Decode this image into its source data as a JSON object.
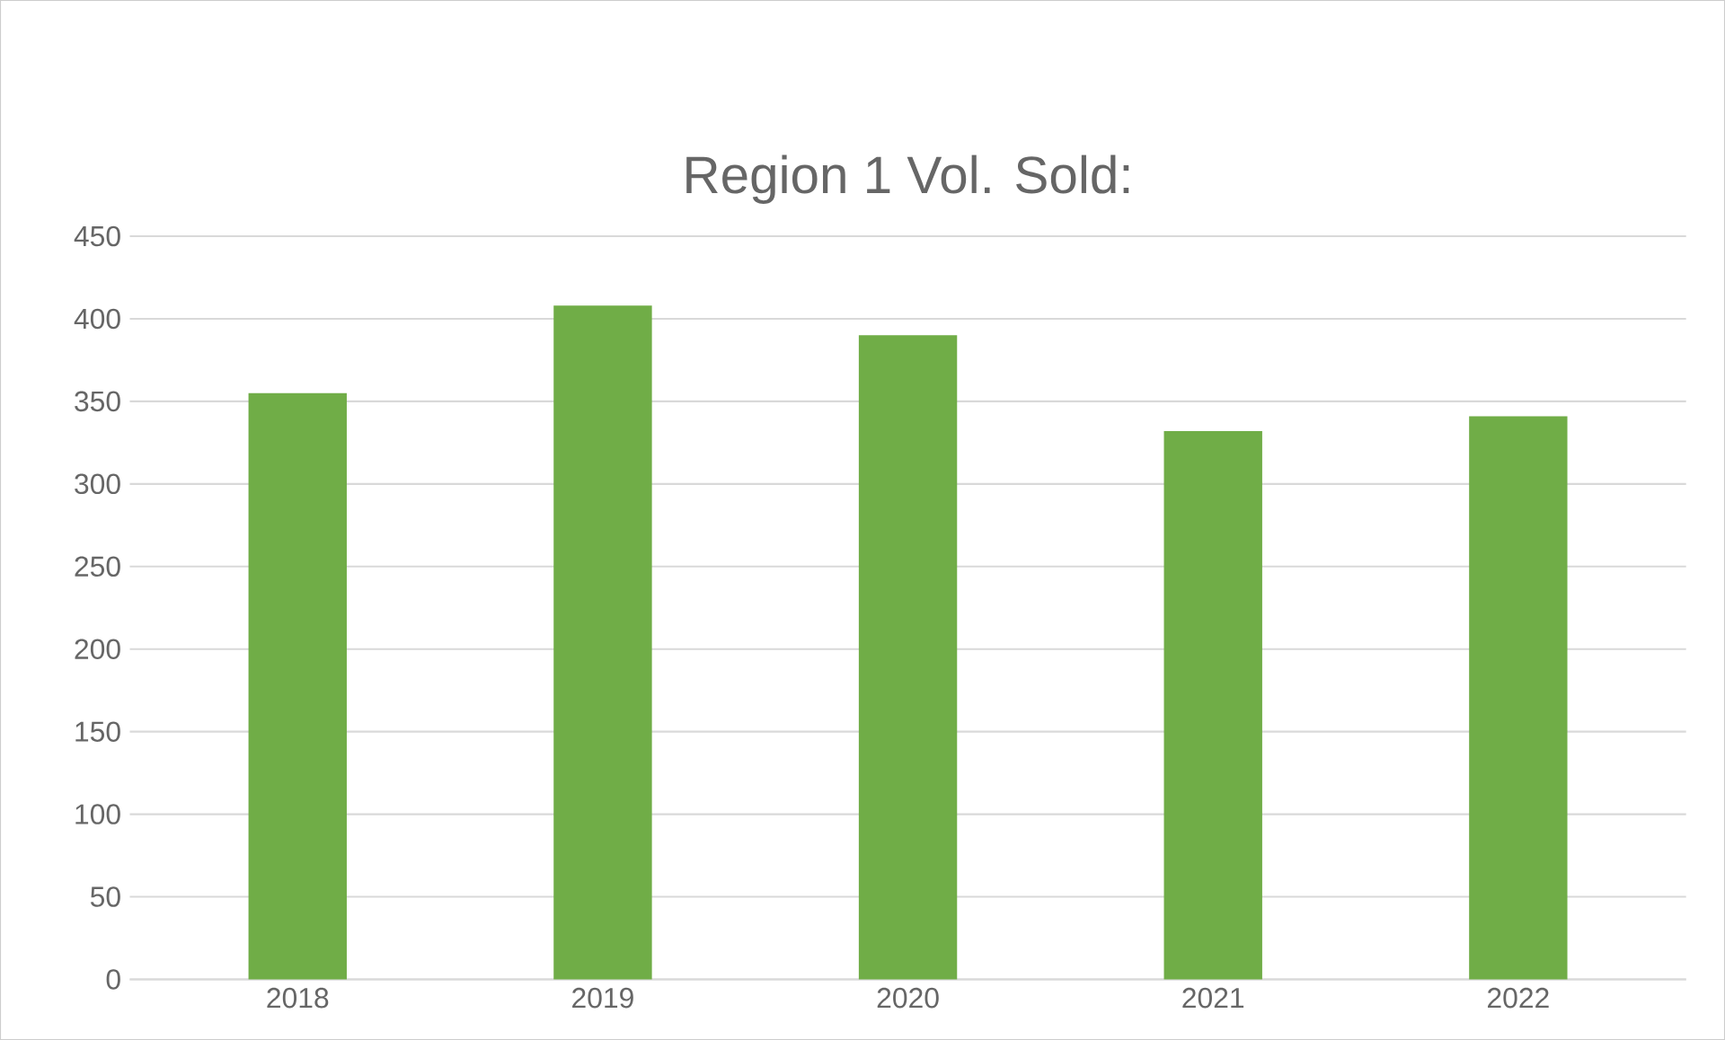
{
  "chart_data": {
    "type": "bar",
    "title": "Region 1  Vol. Sold:",
    "categories": [
      "2018",
      "2019",
      "2020",
      "2021",
      "2022"
    ],
    "values": [
      355,
      408,
      390,
      332,
      341
    ],
    "color": "#70ad47",
    "ylim": [
      0,
      450
    ],
    "yticks": [
      0,
      50,
      100,
      150,
      200,
      250,
      300,
      350,
      400,
      450
    ],
    "grid": "y"
  }
}
